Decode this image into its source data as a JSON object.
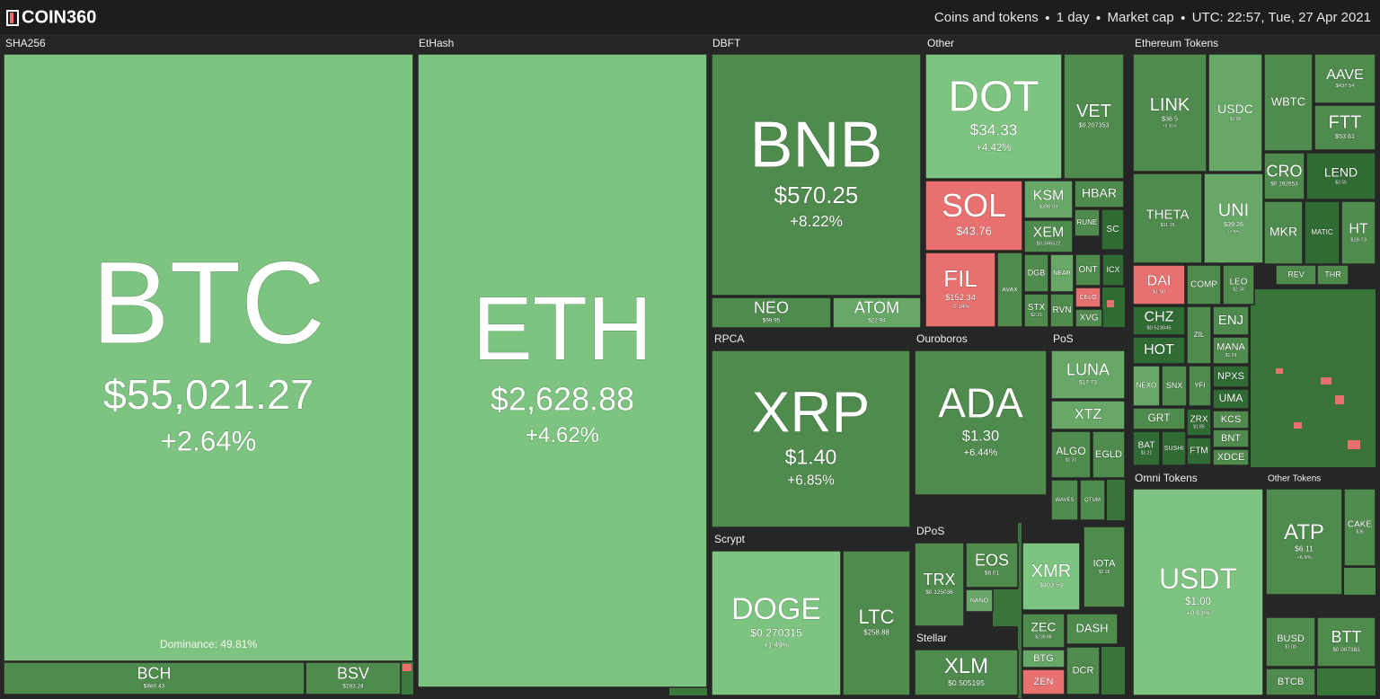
{
  "header": {
    "logo": "COIN360",
    "items": [
      "Coins and tokens",
      "1 day",
      "Market cap",
      "UTC: 22:57, Tue, 27 Apr 2021"
    ]
  },
  "dominance": "Dominance: 49.81%",
  "groups": [
    {
      "label": "SHA256",
      "tiles": [
        {
          "symbol": "BTC",
          "price": "$55,021.27",
          "change": "+2.64%",
          "color": "#7cc47f"
        },
        {
          "symbol": "BCH",
          "price": "$880.43",
          "color": "#4e8b4d"
        },
        {
          "symbol": "BSV",
          "price": "$283.24",
          "color": "#4e8b4d"
        }
      ]
    },
    {
      "label": "EtHash",
      "tiles": [
        {
          "symbol": "ETH",
          "price": "$2,628.88",
          "change": "+4.62%",
          "color": "#7cc47f"
        }
      ]
    },
    {
      "label": "DBFT",
      "tiles": [
        {
          "symbol": "BNB",
          "price": "$570.25",
          "change": "+8.22%",
          "color": "#4e8b4d"
        },
        {
          "symbol": "NEO",
          "price": "$99.95",
          "color": "#4e8b4d"
        },
        {
          "symbol": "ATOM",
          "price": "$22.94",
          "color": "#67a866"
        }
      ]
    },
    {
      "label": "Other",
      "tiles": [
        {
          "symbol": "DOT",
          "price": "$34.33",
          "change": "+4.42%",
          "color": "#7cc47f"
        },
        {
          "symbol": "VET",
          "price": "$0.207353",
          "color": "#4e8b4d"
        },
        {
          "symbol": "SOL",
          "price": "$43.76",
          "color": "#e8706f"
        },
        {
          "symbol": "KSM",
          "price": "$398.04",
          "color": "#67a866"
        },
        {
          "symbol": "HBAR",
          "color": "#4e8b4d"
        },
        {
          "symbol": "XEM",
          "price": "$0.346522",
          "color": "#4e8b4d"
        },
        {
          "symbol": "RUNE",
          "color": "#4e8b4d"
        },
        {
          "symbol": "SC",
          "color": "#2f6b33"
        },
        {
          "symbol": "FIL",
          "price": "$152.34",
          "change": "-0.14%",
          "color": "#e8706f"
        },
        {
          "symbol": "AVAX",
          "color": "#4e8b4d"
        },
        {
          "symbol": "DGB",
          "color": "#4e8b4d"
        },
        {
          "symbol": "NEAR",
          "color": "#67a866"
        },
        {
          "symbol": "ONT",
          "color": "#4e8b4d"
        },
        {
          "symbol": "ICX",
          "color": "#2f6b33"
        },
        {
          "symbol": "STX",
          "price": "$2.21",
          "color": "#4e8b4d"
        },
        {
          "symbol": "RVN",
          "color": "#4e8b4d"
        },
        {
          "symbol": "CELO",
          "color": "#e8706f"
        },
        {
          "symbol": "XVG",
          "color": "#4e8b4d"
        }
      ]
    },
    {
      "label": "Ethereum Tokens",
      "tiles": [
        {
          "symbol": "LINK",
          "price": "$36.5",
          "change": "+6.35%",
          "color": "#4e8b4d"
        },
        {
          "symbol": "USDC",
          "price": "$1.00",
          "color": "#67a866"
        },
        {
          "symbol": "WBTC",
          "color": "#4e8b4d"
        },
        {
          "symbol": "AAVE",
          "price": "$437.54",
          "color": "#4e8b4d"
        },
        {
          "symbol": "FTT",
          "price": "$53.61",
          "color": "#4e8b4d"
        },
        {
          "symbol": "THETA",
          "price": "$11.15",
          "color": "#4e8b4d"
        },
        {
          "symbol": "UNI",
          "price": "$39.26",
          "change": "+2.9%",
          "color": "#67a866"
        },
        {
          "symbol": "CRO",
          "price": "$0.192653",
          "color": "#4e8b4d"
        },
        {
          "symbol": "LEND",
          "price": "$3.55",
          "color": "#2f6b33"
        },
        {
          "symbol": "MKR",
          "color": "#4e8b4d"
        },
        {
          "symbol": "MATIC",
          "color": "#2f6b33"
        },
        {
          "symbol": "HT",
          "price": "$18.73",
          "color": "#4e8b4d"
        },
        {
          "symbol": "DAI",
          "price": "$1.00",
          "color": "#e8706f"
        },
        {
          "symbol": "COMP",
          "color": "#4e8b4d"
        },
        {
          "symbol": "LEO",
          "price": "$2.34",
          "color": "#4e8b4d"
        },
        {
          "symbol": "CHZ",
          "price": "$0.523045",
          "color": "#2f6b33"
        },
        {
          "symbol": "ZIL",
          "color": "#4e8b4d"
        },
        {
          "symbol": "ENJ",
          "color": "#4e8b4d"
        },
        {
          "symbol": "HOT",
          "color": "#2f6b33"
        },
        {
          "symbol": "MANA",
          "price": "$1.29",
          "color": "#4e8b4d"
        },
        {
          "symbol": "NEXO",
          "color": "#67a866"
        },
        {
          "symbol": "SNX",
          "color": "#4e8b4d"
        },
        {
          "symbol": "YFI",
          "color": "#4e8b4d"
        },
        {
          "symbol": "NPXS",
          "color": "#2f6b33"
        },
        {
          "symbol": "UMA",
          "color": "#2f6b33"
        },
        {
          "symbol": "GRT",
          "color": "#4e8b4d"
        },
        {
          "symbol": "ZRX",
          "price": "$1.85",
          "color": "#2f6b33"
        },
        {
          "symbol": "KCS",
          "color": "#4e8b4d"
        },
        {
          "symbol": "BAT",
          "price": "$1.21",
          "color": "#2f6b33"
        },
        {
          "symbol": "SUSHI",
          "color": "#2f6b33"
        },
        {
          "symbol": "FTM",
          "color": "#2f6b33"
        },
        {
          "symbol": "BNT",
          "color": "#4e8b4d"
        },
        {
          "symbol": "XDCE",
          "color": "#4e8b4d"
        },
        {
          "symbol": "REV",
          "color": "#4e8b4d"
        },
        {
          "symbol": "THR",
          "color": "#4e8b4d"
        }
      ]
    },
    {
      "label": "Omni Tokens",
      "tiles": [
        {
          "symbol": "USDT",
          "price": "$1.00",
          "change": "+0.03%",
          "color": "#7cc47f"
        }
      ]
    },
    {
      "label": "Other Tokens",
      "tiles": [
        {
          "symbol": "ATP",
          "price": "$6.11",
          "change": "+6.9%",
          "color": "#4e8b4d"
        },
        {
          "symbol": "CAKE",
          "price": "$36",
          "color": "#4e8b4d"
        },
        {
          "symbol": "BUSD",
          "price": "$1.00",
          "color": "#4e8b4d"
        },
        {
          "symbol": "BTT",
          "price": "$0.007381",
          "color": "#4e8b4d"
        },
        {
          "symbol": "BTCB",
          "color": "#4e8b4d"
        }
      ]
    },
    {
      "label": "RPCA",
      "tiles": [
        {
          "symbol": "XRP",
          "price": "$1.40",
          "change": "+6.85%",
          "color": "#4e8b4d"
        }
      ]
    },
    {
      "label": "Scrypt",
      "tiles": [
        {
          "symbol": "DOGE",
          "price": "$0.270315",
          "change": "+1.49%",
          "color": "#7cc47f"
        },
        {
          "symbol": "LTC",
          "price": "$258.88",
          "color": "#4e8b4d"
        }
      ]
    },
    {
      "label": "Ouroboros",
      "tiles": [
        {
          "symbol": "ADA",
          "price": "$1.30",
          "change": "+6.44%",
          "color": "#4e8b4d"
        }
      ]
    },
    {
      "label": "PoS",
      "tiles": [
        {
          "symbol": "LUNA",
          "price": "$17.73",
          "color": "#67a866"
        },
        {
          "symbol": "XTZ",
          "color": "#67a866"
        },
        {
          "symbol": "ALGO",
          "price": "$1.31",
          "color": "#4e8b4d"
        },
        {
          "symbol": "EGLD",
          "color": "#4e8b4d"
        },
        {
          "symbol": "WAVES",
          "color": "#4e8b4d"
        },
        {
          "symbol": "QTUM",
          "color": "#4e8b4d"
        }
      ]
    },
    {
      "label": "DPoS",
      "tiles": [
        {
          "symbol": "TRX",
          "price": "$0.125036",
          "color": "#4e8b4d"
        },
        {
          "symbol": "EOS",
          "price": "$6.01",
          "color": "#4e8b4d"
        },
        {
          "symbol": "NANO",
          "color": "#67a866"
        },
        {
          "symbol": "XMR",
          "price": "$403.59",
          "color": "#7cc47f"
        },
        {
          "symbol": "IOTA",
          "price": "$2.18",
          "color": "#4e8b4d"
        }
      ]
    },
    {
      "label": "Stellar",
      "tiles": [
        {
          "symbol": "XLM",
          "price": "$0.505195",
          "color": "#4e8b4d"
        }
      ]
    },
    {
      "tiles": [
        {
          "symbol": "ZEC",
          "price": "$239.88",
          "color": "#4e8b4d"
        },
        {
          "symbol": "DASH",
          "color": "#4e8b4d"
        },
        {
          "symbol": "BTG",
          "color": "#67a866"
        },
        {
          "symbol": "ZEN",
          "color": "#e8706f"
        },
        {
          "symbol": "DCR",
          "color": "#4e8b4d"
        }
      ]
    }
  ]
}
